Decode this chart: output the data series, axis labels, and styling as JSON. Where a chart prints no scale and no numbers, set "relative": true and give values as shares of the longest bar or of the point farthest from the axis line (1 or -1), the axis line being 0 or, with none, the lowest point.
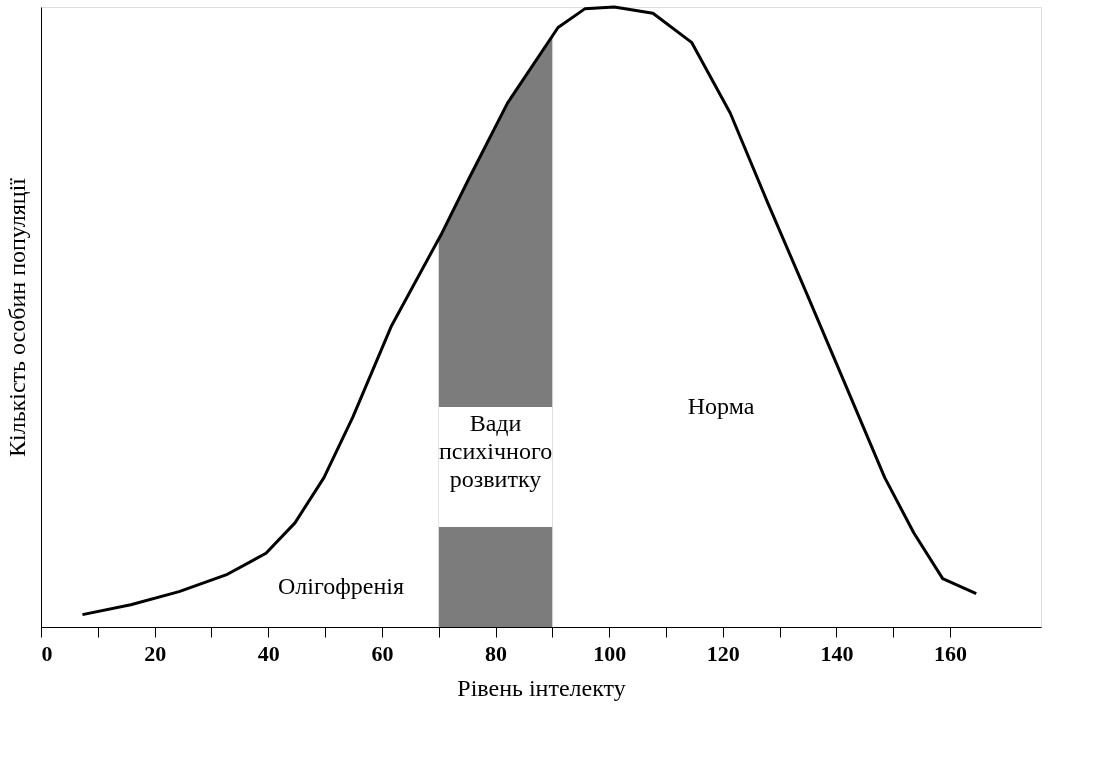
{
  "chart_data": {
    "type": "line",
    "relative": true,
    "xlabel": "Рівень інтелекту",
    "ylabel": "Кількість особин популяції",
    "xlim": [
      0,
      176
    ],
    "xticks": [
      0,
      {
        "value": 10,
        "label": null
      },
      20,
      {
        "value": 30,
        "label": null
      },
      40,
      {
        "value": 50,
        "label": null
      },
      60,
      {
        "value": 70,
        "label": null
      },
      80,
      {
        "value": 90,
        "label": null
      },
      100,
      {
        "value": 110,
        "label": null
      },
      120,
      {
        "value": 130,
        "label": null
      },
      140,
      {
        "value": 150,
        "label": null
      },
      160
    ],
    "series": [
      {
        "color": "#000000",
        "x": [
          7.3,
          15.8,
          24.3,
          32.8,
          39.6,
          44.7,
          49.8,
          54.9,
          61.7,
          70.6,
          75.3,
          82.1,
          91,
          95.7,
          100.9,
          107.7,
          114.5,
          121.3,
          128,
          134.9,
          141.7,
          148.5,
          153.6,
          158.7,
          164.6
        ],
        "values": [
          0.02,
          0.036,
          0.057,
          0.085,
          0.119,
          0.168,
          0.241,
          0.339,
          0.486,
          0.636,
          0.723,
          0.845,
          0.967,
          0.997,
          1.0,
          0.99,
          0.943,
          0.829,
          0.682,
          0.535,
          0.388,
          0.241,
          0.152,
          0.078,
          0.054
        ]
      }
    ],
    "bands": [
      {
        "axis": "x",
        "from": 70,
        "to": 90,
        "label": "Вади психічного розвитку",
        "color": "#6e6e6e"
      }
    ],
    "annotations": [
      "Олігофренія",
      "Норма"
    ],
    "grid": false,
    "marker": "none",
    "line_style": "solid"
  }
}
